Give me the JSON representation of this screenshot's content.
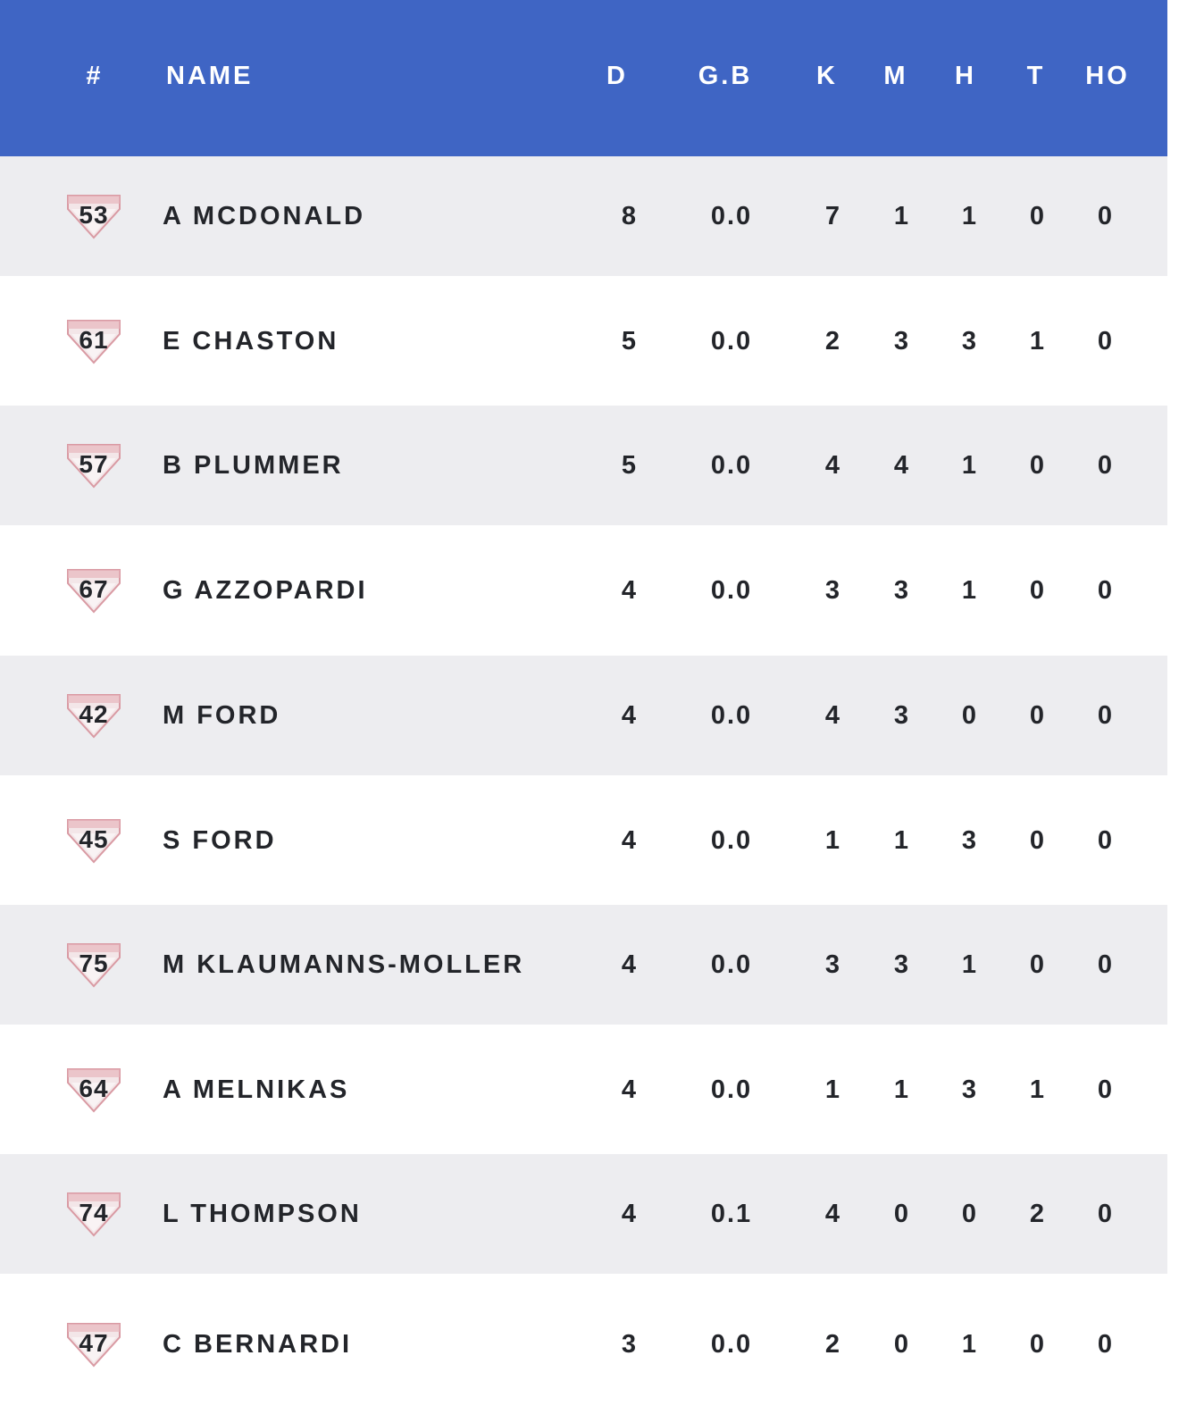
{
  "header": {
    "number": "#",
    "name": "NAME",
    "d": "D",
    "gb": "G.B",
    "k": "K",
    "m": "M",
    "h": "H",
    "t": "T",
    "ho": "HO"
  },
  "colors": {
    "header_bg": "#3f65c4",
    "row_shade": "#ededf0",
    "row_plain": "#ffffff",
    "text": "#23252a",
    "badge": "#c94c5a"
  },
  "badge_icon": "essendon-club-guernsey-icon",
  "rows": [
    {
      "number": "53",
      "name": "A MCDONALD",
      "d": "8",
      "gb": "0.0",
      "k": "7",
      "m": "1",
      "h": "1",
      "t": "0",
      "ho": "0"
    },
    {
      "number": "61",
      "name": "E CHASTON",
      "d": "5",
      "gb": "0.0",
      "k": "2",
      "m": "3",
      "h": "3",
      "t": "1",
      "ho": "0"
    },
    {
      "number": "57",
      "name": "B PLUMMER",
      "d": "5",
      "gb": "0.0",
      "k": "4",
      "m": "4",
      "h": "1",
      "t": "0",
      "ho": "0"
    },
    {
      "number": "67",
      "name": "G AZZOPARDI",
      "d": "4",
      "gb": "0.0",
      "k": "3",
      "m": "3",
      "h": "1",
      "t": "0",
      "ho": "0"
    },
    {
      "number": "42",
      "name": "M FORD",
      "d": "4",
      "gb": "0.0",
      "k": "4",
      "m": "3",
      "h": "0",
      "t": "0",
      "ho": "0"
    },
    {
      "number": "45",
      "name": "S FORD",
      "d": "4",
      "gb": "0.0",
      "k": "1",
      "m": "1",
      "h": "3",
      "t": "0",
      "ho": "0"
    },
    {
      "number": "75",
      "name": "M KLAUMANNS-MOLLER",
      "d": "4",
      "gb": "0.0",
      "k": "3",
      "m": "3",
      "h": "1",
      "t": "0",
      "ho": "0"
    },
    {
      "number": "64",
      "name": "A MELNIKAS",
      "d": "4",
      "gb": "0.0",
      "k": "1",
      "m": "1",
      "h": "3",
      "t": "1",
      "ho": "0"
    },
    {
      "number": "74",
      "name": "L THOMPSON",
      "d": "4",
      "gb": "0.1",
      "k": "4",
      "m": "0",
      "h": "0",
      "t": "2",
      "ho": "0"
    },
    {
      "number": "47",
      "name": "C BERNARDI",
      "d": "3",
      "gb": "0.0",
      "k": "2",
      "m": "0",
      "h": "1",
      "t": "0",
      "ho": "0"
    }
  ]
}
